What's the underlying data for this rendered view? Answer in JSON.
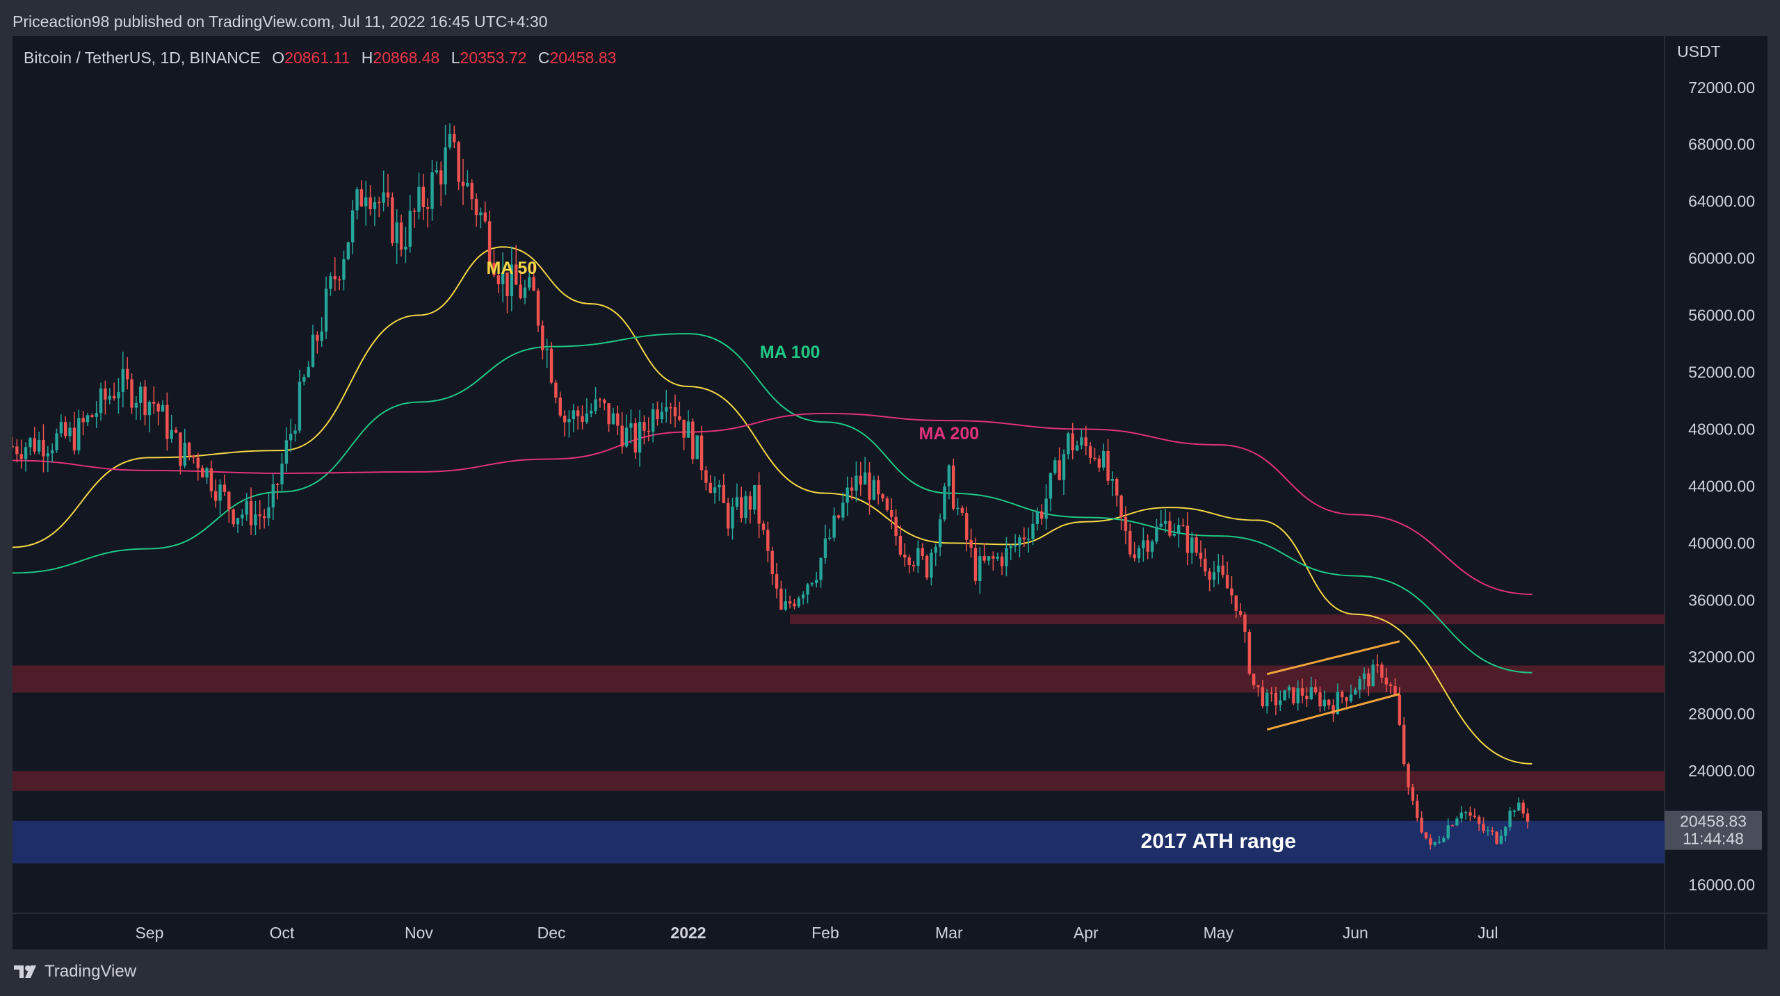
{
  "publisher": "Priceaction98 published on TradingView.com, Jul 11, 2022 16:45 UTC+4:30",
  "footer": {
    "brand": "TradingView",
    "logo_icon": "tradingview-logo-icon"
  },
  "legend": {
    "symbol": "Bitcoin / TetherUS, 1D, BINANCE",
    "o_label": "O",
    "o_value": "20861.11",
    "h_label": "H",
    "h_value": "20868.48",
    "l_label": "L",
    "l_value": "20353.72",
    "c_label": "C",
    "c_value": "20458.83"
  },
  "colors": {
    "background": "#131722",
    "frame": "#2a2e39",
    "up": "#26a69a",
    "down": "#ef5350",
    "ma50": "#f5d745",
    "ma100": "#1fc886",
    "ma200": "#e0327b",
    "zone_red": "#5a1e2a",
    "zone_blue": "#1e2f6e",
    "channel": "#f0a43a",
    "price_tag": "#4a4e5a"
  },
  "chart_data": {
    "type": "candlestick",
    "unit": "USDT",
    "y_axis_ticks": [
      "72000.00",
      "68000.00",
      "64000.00",
      "60000.00",
      "56000.00",
      "52000.00",
      "48000.00",
      "44000.00",
      "40000.00",
      "36000.00",
      "32000.00",
      "28000.00",
      "24000.00",
      "16000.00"
    ],
    "x_axis_ticks": [
      "Sep",
      "Oct",
      "Nov",
      "Dec",
      "2022",
      "Feb",
      "Mar",
      "Apr",
      "May",
      "Jun",
      "Jul"
    ],
    "ylim": [
      14000,
      75600
    ],
    "current_price": {
      "value": "20458.83",
      "countdown": "11:44:48"
    },
    "series": [
      {
        "name": "Bitcoin / TetherUS",
        "points": [
          {
            "date": "2021-08-01",
            "close": 46800
          },
          {
            "date": "2021-08-15",
            "close": 47500
          },
          {
            "date": "2021-08-25",
            "close": 51200
          },
          {
            "date": "2021-09-02",
            "close": 49900
          },
          {
            "date": "2021-09-08",
            "close": 46400
          },
          {
            "date": "2021-09-12",
            "close": 45900
          },
          {
            "date": "2021-09-20",
            "close": 42200
          },
          {
            "date": "2021-09-28",
            "close": 41900
          },
          {
            "date": "2021-10-04",
            "close": 49000
          },
          {
            "date": "2021-10-12",
            "close": 57800
          },
          {
            "date": "2021-10-20",
            "close": 65500
          },
          {
            "date": "2021-10-28",
            "close": 61300
          },
          {
            "date": "2021-11-08",
            "close": 67500
          },
          {
            "date": "2021-11-15",
            "close": 63000
          },
          {
            "date": "2021-11-20",
            "close": 58500
          },
          {
            "date": "2021-11-27",
            "close": 57200
          },
          {
            "date": "2021-12-04",
            "close": 48700
          },
          {
            "date": "2021-12-12",
            "close": 49500
          },
          {
            "date": "2021-12-20",
            "close": 47000
          },
          {
            "date": "2021-12-27",
            "close": 50800
          },
          {
            "date": "2022-01-03",
            "close": 46400
          },
          {
            "date": "2022-01-10",
            "close": 41800
          },
          {
            "date": "2022-01-16",
            "close": 43100
          },
          {
            "date": "2022-01-22",
            "close": 35000
          },
          {
            "date": "2022-01-30",
            "close": 38200
          },
          {
            "date": "2022-02-07",
            "close": 44000
          },
          {
            "date": "2022-02-10",
            "close": 44500
          },
          {
            "date": "2022-02-18",
            "close": 40000
          },
          {
            "date": "2022-02-24",
            "close": 38300
          },
          {
            "date": "2022-03-01",
            "close": 44400
          },
          {
            "date": "2022-03-07",
            "close": 38100
          },
          {
            "date": "2022-03-15",
            "close": 39400
          },
          {
            "date": "2022-03-22",
            "close": 42400
          },
          {
            "date": "2022-03-28",
            "close": 47100
          },
          {
            "date": "2022-04-04",
            "close": 46400
          },
          {
            "date": "2022-04-11",
            "close": 39500
          },
          {
            "date": "2022-04-20",
            "close": 41500
          },
          {
            "date": "2022-04-30",
            "close": 38000
          },
          {
            "date": "2022-05-05",
            "close": 36000
          },
          {
            "date": "2022-05-09",
            "close": 30000
          },
          {
            "date": "2022-05-12",
            "close": 28800
          },
          {
            "date": "2022-05-20",
            "close": 29500
          },
          {
            "date": "2022-05-27",
            "close": 28700
          },
          {
            "date": "2022-06-01",
            "close": 30000
          },
          {
            "date": "2022-06-07",
            "close": 31100
          },
          {
            "date": "2022-06-10",
            "close": 29100
          },
          {
            "date": "2022-06-13",
            "close": 22400
          },
          {
            "date": "2022-06-18",
            "close": 18500
          },
          {
            "date": "2022-06-25",
            "close": 21400
          },
          {
            "date": "2022-06-30",
            "close": 19800
          },
          {
            "date": "2022-07-03",
            "close": 19300
          },
          {
            "date": "2022-07-07",
            "close": 21600
          },
          {
            "date": "2022-07-11",
            "close": 20459
          }
        ]
      },
      {
        "name": "MA 50",
        "points": [
          {
            "date": "2021-08-01",
            "value": 39700
          },
          {
            "date": "2021-09-01",
            "value": 46000
          },
          {
            "date": "2021-10-01",
            "value": 46500
          },
          {
            "date": "2021-11-01",
            "value": 56000
          },
          {
            "date": "2021-11-20",
            "value": 60800
          },
          {
            "date": "2021-12-10",
            "value": 56800
          },
          {
            "date": "2022-01-01",
            "value": 51000
          },
          {
            "date": "2022-02-01",
            "value": 43500
          },
          {
            "date": "2022-03-01",
            "value": 40000
          },
          {
            "date": "2022-03-15",
            "value": 39900
          },
          {
            "date": "2022-04-01",
            "value": 41500
          },
          {
            "date": "2022-04-20",
            "value": 42500
          },
          {
            "date": "2022-05-10",
            "value": 41600
          },
          {
            "date": "2022-06-01",
            "value": 35000
          },
          {
            "date": "2022-07-11",
            "value": 24500
          }
        ]
      },
      {
        "name": "MA 100",
        "points": [
          {
            "date": "2021-08-01",
            "value": 37900
          },
          {
            "date": "2021-09-01",
            "value": 39600
          },
          {
            "date": "2021-10-01",
            "value": 43600
          },
          {
            "date": "2021-11-01",
            "value": 49900
          },
          {
            "date": "2021-12-01",
            "value": 53800
          },
          {
            "date": "2022-01-01",
            "value": 54700
          },
          {
            "date": "2022-02-01",
            "value": 48500
          },
          {
            "date": "2022-03-01",
            "value": 43500
          },
          {
            "date": "2022-04-01",
            "value": 41800
          },
          {
            "date": "2022-05-01",
            "value": 40500
          },
          {
            "date": "2022-06-01",
            "value": 37700
          },
          {
            "date": "2022-07-11",
            "value": 30900
          }
        ]
      },
      {
        "name": "MA 200",
        "points": [
          {
            "date": "2021-08-01",
            "value": 45800
          },
          {
            "date": "2021-09-01",
            "value": 45100
          },
          {
            "date": "2021-10-01",
            "value": 44900
          },
          {
            "date": "2021-11-01",
            "value": 45000
          },
          {
            "date": "2021-12-01",
            "value": 45900
          },
          {
            "date": "2022-01-01",
            "value": 47800
          },
          {
            "date": "2022-02-01",
            "value": 49100
          },
          {
            "date": "2022-03-01",
            "value": 48600
          },
          {
            "date": "2022-04-01",
            "value": 48000
          },
          {
            "date": "2022-05-01",
            "value": 46900
          },
          {
            "date": "2022-06-01",
            "value": 42000
          },
          {
            "date": "2022-07-11",
            "value": 36400
          }
        ]
      }
    ],
    "annotations": [
      {
        "label": "MA 50"
      },
      {
        "label": "MA 100"
      },
      {
        "label": "MA 200"
      },
      {
        "label": "2017 ATH range",
        "range": [
          17500,
          20500
        ]
      }
    ],
    "zones": [
      {
        "range": [
          34300,
          35000
        ]
      },
      {
        "range": [
          29500,
          31400
        ]
      },
      {
        "range": [
          22600,
          24000
        ]
      },
      {
        "range": [
          17500,
          20500
        ]
      }
    ],
    "channel": {
      "upper": [
        {
          "date": "2022-05-12",
          "value": 30800
        },
        {
          "date": "2022-06-11",
          "value": 33100
        }
      ],
      "lower": [
        {
          "date": "2022-05-12",
          "value": 26900
        },
        {
          "date": "2022-06-11",
          "value": 29400
        }
      ]
    }
  }
}
